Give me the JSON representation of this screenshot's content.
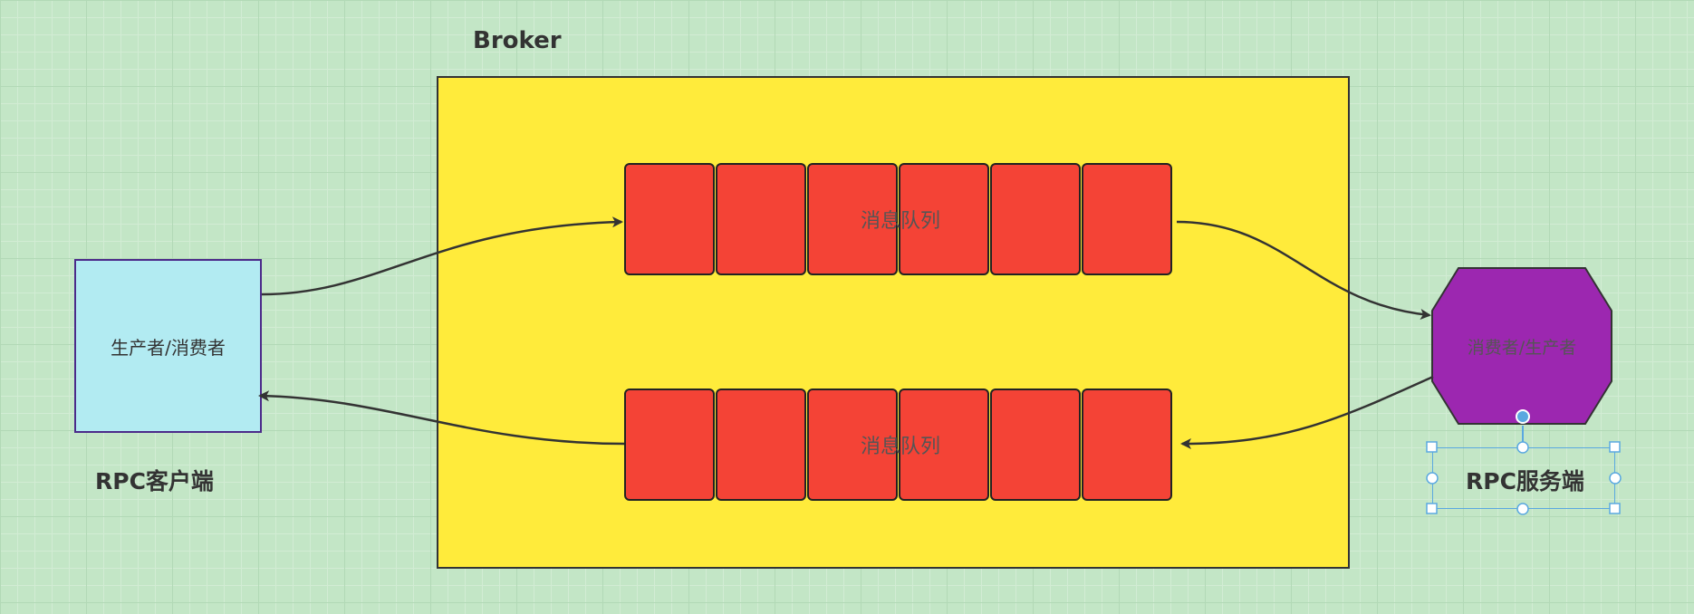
{
  "colors": {
    "broker_fill": "#ffeb3b",
    "queue_cell_fill": "#f44336",
    "client_fill": "#b2ebf2",
    "server_fill": "#9c27b0",
    "arrow": "#333333",
    "selection": "#5aa8e0"
  },
  "broker": {
    "title": "Broker"
  },
  "queues": [
    {
      "label": "消息队列",
      "cell_count": 6
    },
    {
      "label": "消息队列",
      "cell_count": 6
    }
  ],
  "client": {
    "node_label": "生产者/消费者",
    "caption": "RPC客户端"
  },
  "server": {
    "node_label": "消费者/生产者",
    "caption": "RPC服务端"
  }
}
